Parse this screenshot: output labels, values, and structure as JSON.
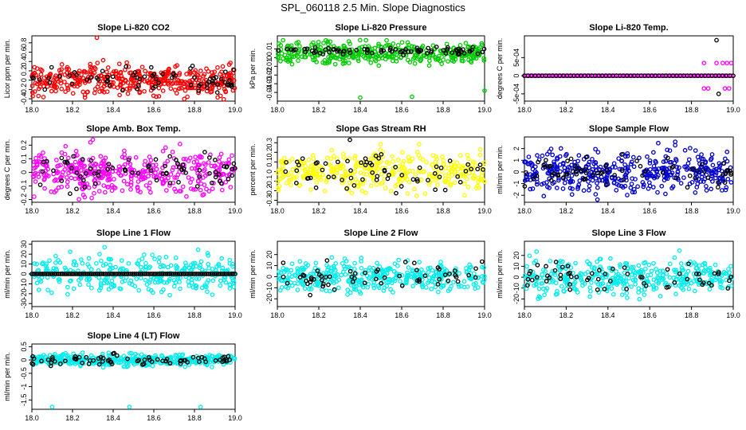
{
  "page": {
    "title": "SPL_060118  2.5 Min. Slope Diagnostics"
  },
  "chart_data": [
    {
      "type": "scatter",
      "title": "Slope Li-820 CO2",
      "ylabel": "Licor ppm per min.",
      "xlim": [
        18.0,
        19.0
      ],
      "ylim": [
        -0.45,
        0.95
      ],
      "xticks": [
        "18.0",
        "18.2",
        "18.4",
        "18.6",
        "18.8",
        "19.0"
      ],
      "yticks": [
        -0.4,
        -0.2,
        0.0,
        0.2,
        0.4,
        0.6,
        0.8
      ],
      "colors": {
        "primary": "#ff0000",
        "secondary": "#000000"
      },
      "series": [
        {
          "color": "#ff0000",
          "center": 0.0,
          "spread": 0.16,
          "count": 420
        },
        {
          "color": "#000000",
          "center": 0.0,
          "spread": 0.13,
          "count": 70
        }
      ],
      "outliers": [
        {
          "x": 18.32,
          "y": 0.91,
          "color": "#ff0000"
        }
      ]
    },
    {
      "type": "scatter",
      "title": "Slope Li-820 Pressure",
      "ylabel": "kPa per min.",
      "xlim": [
        18.0,
        19.0
      ],
      "ylim": [
        -0.05,
        0.025
      ],
      "xticks": [
        "18.0",
        "18.2",
        "18.4",
        "18.6",
        "18.8",
        "19.0"
      ],
      "yticks": [
        -0.04,
        -0.03,
        -0.02,
        -0.01,
        0.0,
        0.01
      ],
      "series": [
        {
          "color": "#00cc00",
          "center": 0.005,
          "spread": 0.006,
          "count": 380
        },
        {
          "color": "#000000",
          "center": 0.008,
          "spread": 0.0025,
          "count": 80
        }
      ],
      "outliers": [
        {
          "x": 18.4,
          "y": -0.046,
          "color": "#00cc00"
        },
        {
          "x": 18.65,
          "y": -0.045,
          "color": "#00cc00"
        },
        {
          "x": 19.0,
          "y": -0.038,
          "color": "#00cc00"
        }
      ]
    },
    {
      "type": "scatter",
      "title": "Slope Li-820 Temp.",
      "ylabel": "degrees C per min.",
      "xlim": [
        18.0,
        19.0
      ],
      "ylim": [
        -0.0007,
        0.0011
      ],
      "xticks": [
        "18.0",
        "18.2",
        "18.4",
        "18.6",
        "18.8",
        "19.0"
      ],
      "yticks": [
        "-5e-04",
        "0",
        "5e-04"
      ],
      "ytick_values": [
        -0.0005,
        0.0,
        0.0005
      ],
      "series": [
        {
          "color": "#ff00ff",
          "center": 0.0,
          "spread": 0.0,
          "count": 110
        },
        {
          "color": "#000000",
          "center": 0.0,
          "spread": 0.0,
          "count": 60
        }
      ],
      "outliers": [
        {
          "x": 18.86,
          "y": 0.00035,
          "color": "#ff00ff"
        },
        {
          "x": 18.92,
          "y": 0.00035,
          "color": "#ff00ff"
        },
        {
          "x": 18.95,
          "y": 0.00035,
          "color": "#ff00ff"
        },
        {
          "x": 18.97,
          "y": 0.00035,
          "color": "#ff00ff"
        },
        {
          "x": 18.99,
          "y": 0.00035,
          "color": "#ff00ff"
        },
        {
          "x": 18.86,
          "y": -0.00035,
          "color": "#ff00ff"
        },
        {
          "x": 18.88,
          "y": -0.00035,
          "color": "#ff00ff"
        },
        {
          "x": 18.96,
          "y": -0.00035,
          "color": "#ff00ff"
        },
        {
          "x": 18.98,
          "y": -0.00035,
          "color": "#ff00ff"
        },
        {
          "x": 18.92,
          "y": 0.00098,
          "color": "#000000"
        },
        {
          "x": 18.93,
          "y": -0.0005,
          "color": "#000000"
        }
      ]
    },
    {
      "type": "scatter",
      "title": "Slope Amb. Box Temp.",
      "ylabel": "degrees C per min.",
      "xlim": [
        18.0,
        19.0
      ],
      "ylim": [
        -0.22,
        0.26
      ],
      "xticks": [
        "18.0",
        "18.2",
        "18.4",
        "18.6",
        "18.8",
        "19.0"
      ],
      "yticks": [
        -0.2,
        -0.1,
        0.0,
        0.1,
        0.2
      ],
      "series": [
        {
          "color": "#ff00ff",
          "center": 0.0,
          "spread": 0.075,
          "count": 400
        },
        {
          "color": "#000000",
          "center": 0.0,
          "spread": 0.06,
          "count": 75
        }
      ],
      "outliers": [
        {
          "x": 18.3,
          "y": 0.24,
          "color": "#ff00ff"
        }
      ]
    },
    {
      "type": "scatter",
      "title": "Slope Gas Stream RH",
      "ylabel": "percent per min.",
      "xlim": [
        18.0,
        19.0
      ],
      "ylim": [
        -0.32,
        0.36
      ],
      "xticks": [
        "18.0",
        "18.2",
        "18.4",
        "18.6",
        "18.8",
        "19.0"
      ],
      "yticks": [
        -0.3,
        -0.2,
        -0.1,
        0.0,
        0.1,
        0.2,
        0.3
      ],
      "series": [
        {
          "color": "#ffff00",
          "center": 0.0,
          "spread": 0.1,
          "count": 380
        },
        {
          "color": "#000000",
          "center": 0.0,
          "spread": 0.1,
          "count": 65
        }
      ],
      "outliers": [
        {
          "x": 18.35,
          "y": 0.33,
          "color": "#000000"
        }
      ]
    },
    {
      "type": "scatter",
      "title": "Slope Sample Flow",
      "ylabel": "ml/min per min.",
      "xlim": [
        18.0,
        19.0
      ],
      "ylim": [
        -2.6,
        3.0
      ],
      "xticks": [
        "18.0",
        "18.2",
        "18.4",
        "18.6",
        "18.8",
        "19.0"
      ],
      "yticks": [
        -2,
        -1,
        0,
        1,
        2
      ],
      "series": [
        {
          "color": "#0000cc",
          "center": 0.0,
          "spread": 0.9,
          "count": 420
        },
        {
          "color": "#000000",
          "center": 0.0,
          "spread": 0.6,
          "count": 70
        }
      ],
      "outliers": []
    },
    {
      "type": "scatter",
      "title": "Slope Line 1 Flow",
      "ylabel": "ml/min per min.",
      "xlim": [
        18.0,
        19.0
      ],
      "ylim": [
        -33,
        33
      ],
      "xticks": [
        "18.0",
        "18.2",
        "18.4",
        "18.6",
        "18.8",
        "19.0"
      ],
      "yticks": [
        -30,
        -20,
        -10,
        0,
        10,
        20,
        30
      ],
      "series": [
        {
          "color": "#00eeee",
          "center": 0.0,
          "spread": 9.0,
          "count": 330
        },
        {
          "color": "#000000",
          "center": 0.0,
          "spread": 0.0,
          "count": 100
        }
      ],
      "outliers": []
    },
    {
      "type": "scatter",
      "title": "Slope Line 2 Flow",
      "ylabel": "ml/min per min.",
      "xlim": [
        18.0,
        19.0
      ],
      "ylim": [
        -27,
        32
      ],
      "xticks": [
        "18.0",
        "18.2",
        "18.4",
        "18.6",
        "18.8",
        "19.0"
      ],
      "yticks": [
        -20,
        -10,
        0,
        10,
        20
      ],
      "series": [
        {
          "color": "#00eeee",
          "center": 0.0,
          "spread": 7.0,
          "count": 380
        },
        {
          "color": "#000000",
          "center": 0.0,
          "spread": 6.0,
          "count": 60
        }
      ],
      "outliers": []
    },
    {
      "type": "scatter",
      "title": "Slope Line 3 Flow",
      "ylabel": "ml/min per min.",
      "xlim": [
        18.0,
        19.0
      ],
      "ylim": [
        -27,
        33
      ],
      "xticks": [
        "18.0",
        "18.2",
        "18.4",
        "18.6",
        "18.8",
        "19.0"
      ],
      "yticks": [
        -20,
        -10,
        0,
        10,
        20
      ],
      "series": [
        {
          "color": "#00eeee",
          "center": 0.0,
          "spread": 8.0,
          "count": 380
        },
        {
          "color": "#000000",
          "center": 0.0,
          "spread": 6.0,
          "count": 60
        }
      ],
      "outliers": []
    },
    {
      "type": "scatter",
      "title": "Slope Line 4 (LT) Flow",
      "ylabel": "ml/min per min.",
      "xlim": [
        18.0,
        19.0
      ],
      "ylim": [
        -1.85,
        0.6
      ],
      "xticks": [
        "18.0",
        "18.2",
        "18.4",
        "18.6",
        "18.8",
        "19.0"
      ],
      "yticks": [
        -1.5,
        -1.0,
        -0.5,
        0.0,
        0.5
      ],
      "series": [
        {
          "color": "#00eeee",
          "center": 0.0,
          "spread": 0.11,
          "count": 420
        },
        {
          "color": "#000000",
          "center": 0.0,
          "spread": 0.09,
          "count": 75
        }
      ],
      "outliers": [
        {
          "x": 18.1,
          "y": -1.76,
          "color": "#00eeee"
        },
        {
          "x": 18.48,
          "y": -1.76,
          "color": "#00eeee"
        },
        {
          "x": 18.83,
          "y": -1.76,
          "color": "#00eeee"
        }
      ]
    }
  ]
}
